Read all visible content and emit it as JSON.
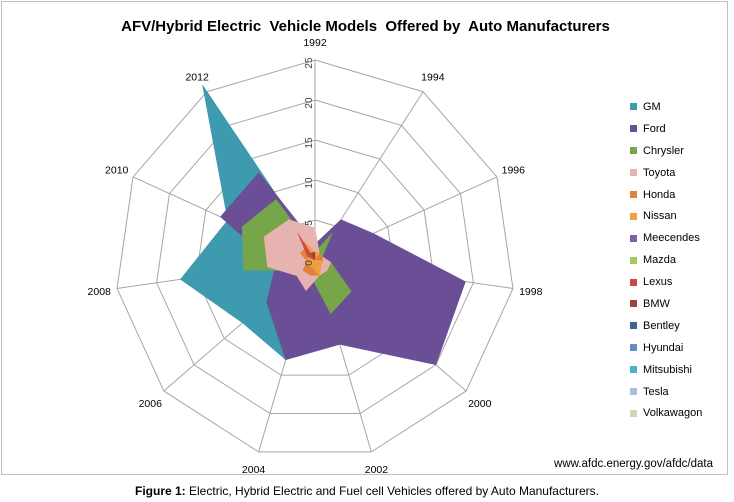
{
  "caption": {
    "label": "Figure 1:",
    "text": "Electric, Hybrid Electric and Fuel cell Vehicles offered by Auto Manufacturers."
  },
  "chart_data": {
    "type": "radar",
    "title": "AFV/Hybrid Electric  Vehicle Models  Offered by  Auto Manufacturers",
    "source": "www.afdc.energy.gov/afdc/data",
    "categories": [
      "1992",
      "1994",
      "1996",
      "1998",
      "2000",
      "2002",
      "2004",
      "2006",
      "2008",
      "2010",
      "2012"
    ],
    "radial_ticks": [
      "0",
      "5",
      "10",
      "15",
      "20",
      "25"
    ],
    "rmax": 25,
    "legend_position": "right",
    "series": [
      {
        "name": "GM",
        "color": "#3e9aae",
        "values": [
          1,
          0,
          1,
          1,
          2,
          3,
          13,
          12,
          17,
          12,
          26
        ]
      },
      {
        "name": "Ford",
        "color": "#6b4f96",
        "values": [
          2,
          6,
          8,
          19,
          20,
          11,
          13,
          8,
          5,
          13,
          13
        ]
      },
      {
        "name": "Chrysler",
        "color": "#77a64a",
        "values": [
          1,
          4,
          1,
          2,
          6,
          7,
          2,
          2,
          9,
          10,
          9
        ]
      },
      {
        "name": "Toyota",
        "color": "#e7b3b0",
        "values": [
          4,
          1,
          1,
          2,
          2,
          2,
          4,
          3,
          6,
          7,
          6
        ]
      },
      {
        "name": "Honda",
        "color": "#e0823c",
        "values": [
          1,
          1,
          1,
          1,
          1,
          2,
          2,
          2,
          1,
          2,
          2
        ]
      },
      {
        "name": "Nissan",
        "color": "#f2a03c",
        "values": [
          1,
          1,
          0,
          1,
          1,
          2,
          1,
          1,
          1,
          1,
          3
        ]
      },
      {
        "name": "Meecendes",
        "color": "#8060a8",
        "values": [
          0,
          0,
          0,
          0,
          0,
          0,
          0,
          0,
          0,
          0,
          0
        ]
      },
      {
        "name": "Mazda",
        "color": "#a6c85f",
        "values": [
          0,
          0,
          0,
          0,
          0,
          0,
          0,
          0,
          0,
          0,
          0
        ]
      },
      {
        "name": "Lexus",
        "color": "#cf4a46",
        "values": [
          0,
          0,
          0,
          0,
          0,
          0,
          0,
          0,
          0,
          1,
          4
        ]
      },
      {
        "name": "BMW",
        "color": "#9f413d",
        "values": [
          1,
          0,
          0,
          0,
          0,
          0,
          0,
          0,
          0,
          0,
          1
        ]
      },
      {
        "name": "Bentley",
        "color": "#3b6693",
        "values": [
          0,
          0,
          0,
          0,
          0,
          0,
          0,
          0,
          0,
          0,
          0
        ]
      },
      {
        "name": "Hyundai",
        "color": "#5f8fc4",
        "values": [
          0,
          0,
          0,
          0,
          0,
          0,
          0,
          0,
          0,
          0,
          0
        ]
      },
      {
        "name": "Mitsubishi",
        "color": "#4bb2c5",
        "values": [
          0,
          0,
          0,
          0,
          0,
          0,
          0,
          0,
          0,
          0,
          0
        ]
      },
      {
        "name": "Tesla",
        "color": "#a8bfdd",
        "values": [
          0,
          0,
          0,
          0,
          0,
          0,
          0,
          0,
          0,
          0,
          0
        ]
      },
      {
        "name": "Volkawagon",
        "color": "#c9dcb0",
        "values": [
          0,
          0,
          0,
          0,
          0,
          0,
          0,
          0,
          0,
          0,
          0
        ]
      }
    ]
  }
}
